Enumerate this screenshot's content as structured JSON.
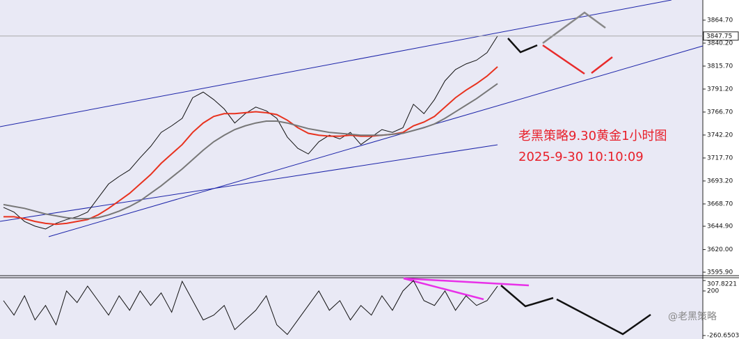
{
  "chart_data": [
    {
      "type": "line",
      "annotations": [
        "老黑策略9.30黄金1小时图",
        "2025-9-30 10:10:09"
      ],
      "watermark": "@老黑策略",
      "last_price": 3847.75,
      "ylim": [
        3592.2,
        3886.2
      ],
      "yticks": [
        {
          "value": 3595.9,
          "label": "3595.90"
        },
        {
          "value": 3620,
          "label": "3620.00"
        },
        {
          "value": 3644.9,
          "label": "3644.90"
        },
        {
          "value": 3668.7,
          "label": "3668.70"
        },
        {
          "value": 3693.2,
          "label": "3693.20"
        },
        {
          "value": 3717.7,
          "label": "3717.70"
        },
        {
          "value": 3742.2,
          "label": "3742.20"
        },
        {
          "value": 3766.7,
          "label": "3766.70"
        },
        {
          "value": 3791.2,
          "label": "3791.20"
        },
        {
          "value": 3815.7,
          "label": "3815.70"
        },
        {
          "value": 3840.2,
          "label": "3840.20"
        },
        {
          "value": 3864.7,
          "label": "3864.70"
        }
      ],
      "grid": false,
      "series": [
        {
          "color": "#111111",
          "values": [
            3665,
            3660,
            3650,
            3645,
            3642,
            3648,
            3652,
            3655,
            3660,
            3675,
            3690,
            3698,
            3705,
            3718,
            3730,
            3745,
            3752,
            3760,
            3782,
            3788,
            3780,
            3770,
            3755,
            3765,
            3772,
            3768,
            3760,
            3740,
            3728,
            3722,
            3735,
            3742,
            3738,
            3745,
            3732,
            3740,
            3748,
            3745,
            3750,
            3775,
            3765,
            3780,
            3800,
            3812,
            3818,
            3822,
            3830,
            3847.75
          ]
        },
        {
          "color": "#e8321e",
          "values": [
            3655,
            3655,
            3653,
            3650,
            3648,
            3647,
            3648,
            3650,
            3652,
            3657,
            3664,
            3672,
            3680,
            3690,
            3700,
            3712,
            3722,
            3732,
            3745,
            3755,
            3762,
            3765,
            3765,
            3766,
            3767,
            3766,
            3764,
            3758,
            3750,
            3744,
            3742,
            3741,
            3741,
            3742,
            3741,
            3741,
            3742,
            3743,
            3745,
            3752,
            3756,
            3762,
            3772,
            3782,
            3790,
            3797,
            3805,
            3815
          ]
        },
        {
          "color": "#777777",
          "values": [
            3668,
            3666,
            3664,
            3661,
            3658,
            3656,
            3654,
            3653,
            3653,
            3654,
            3657,
            3661,
            3666,
            3672,
            3680,
            3688,
            3697,
            3706,
            3716,
            3726,
            3735,
            3742,
            3748,
            3752,
            3755,
            3757,
            3757,
            3755,
            3752,
            3749,
            3747,
            3745,
            3744,
            3743,
            3742,
            3742,
            3742,
            3743,
            3744,
            3747,
            3750,
            3754,
            3760,
            3767,
            3774,
            3781,
            3789,
            3797
          ]
        }
      ]
    },
    {
      "type": "line",
      "ylim": [
        -260.6503,
        307.8221
      ],
      "yticks": [
        -260.6503,
        200,
        307.8221
      ],
      "grid": false,
      "series": [
        {
          "color": "#111111",
          "values": [
            100,
            -50,
            150,
            -100,
            50,
            -150,
            200,
            80,
            250,
            100,
            -50,
            150,
            0,
            200,
            50,
            180,
            -20,
            300,
            100,
            -100,
            -50,
            50,
            -200,
            -100,
            0,
            150,
            -150,
            -250,
            -100,
            50,
            200,
            0,
            100,
            -100,
            50,
            -50,
            150,
            0,
            200,
            307,
            100,
            50,
            200,
            0,
            150,
            50,
            100,
            250
          ]
        }
      ]
    }
  ]
}
